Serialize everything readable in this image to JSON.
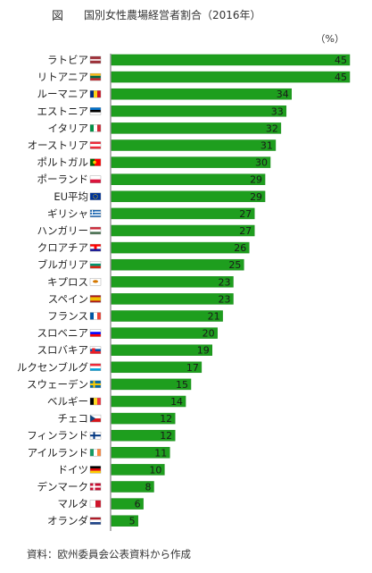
{
  "header": {
    "fig_label": "図",
    "title": "国別女性農場経営者割合（2016年）",
    "unit": "（%）"
  },
  "footer": {
    "source": "資料：欧州委員会公表資料から作成"
  },
  "colors": {
    "bar": "#1e9e1e",
    "bar_edge": "#178a17",
    "axis": "#666666"
  },
  "chart_data": {
    "type": "bar",
    "orientation": "horizontal",
    "title": "国別女性農場経営者割合（2016年）",
    "unit": "（%）",
    "xlim": [
      0,
      45
    ],
    "grid": false,
    "categories": [
      "ラトビア",
      "リトアニア",
      "ルーマニア",
      "エストニア",
      "イタリア",
      "オーストリア",
      "ポルトガル",
      "ポーランド",
      "EU平均",
      "ギリシャ",
      "ハンガリー",
      "クロアチア",
      "ブルガリア",
      "キプロス",
      "スペイン",
      "フランス",
      "スロベニア",
      "スロバキア",
      "ルクセンブルグ",
      "スウェーデン",
      "ベルギー",
      "チェコ",
      "フィンランド",
      "アイルランド",
      "ドイツ",
      "デンマーク",
      "マルタ",
      "オランダ"
    ],
    "values": [
      45,
      45,
      34,
      33,
      32,
      31,
      30,
      29,
      29,
      27,
      27,
      26,
      25,
      23,
      23,
      21,
      20,
      19,
      17,
      15,
      14,
      12,
      12,
      11,
      10,
      8,
      6,
      5
    ],
    "flags": [
      "latvia",
      "lithuania",
      "romania",
      "estonia",
      "italy",
      "austria",
      "portugal",
      "poland",
      "eu",
      "greece",
      "hungary",
      "croatia",
      "bulgaria",
      "cyprus",
      "spain",
      "france",
      "slovenia",
      "slovakia",
      "luxembourg",
      "sweden",
      "belgium",
      "czech",
      "finland",
      "ireland",
      "germany",
      "denmark",
      "malta",
      "netherlands"
    ]
  }
}
